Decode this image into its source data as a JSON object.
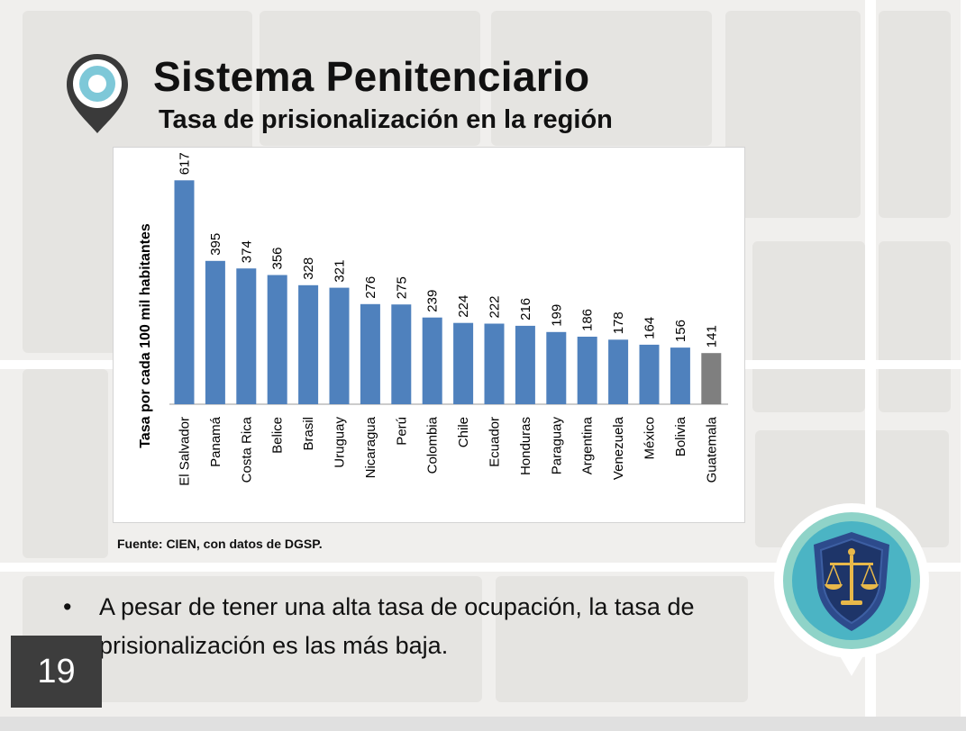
{
  "slide": {
    "title": "Sistema Penitenciario",
    "subtitle": "Tasa de prisionalización en la región",
    "source": "Fuente: CIEN, con datos de DGSP.",
    "bullet_symbol": "•",
    "bullet_text": "A pesar de tener una alta tasa de ocupación, la tasa de prisionalización es las más baja.",
    "page_number": "19",
    "colors": {
      "bar": "#4f81bd",
      "highlight_bar": "#7f7f7f",
      "pin_ring": "#7ec8d8",
      "shield": "#2d4b8c",
      "badge_gold": "#e8b84a"
    }
  },
  "chart_data": {
    "type": "bar",
    "title": "",
    "xlabel": "",
    "ylabel": "Tasa por cada 100 mil habitantes",
    "ylim": [
      0,
      650
    ],
    "grid": false,
    "categories": [
      "El Salvador",
      "Panamá",
      "Costa Rica",
      "Belice",
      "Brasil",
      "Uruguay",
      "Nicaragua",
      "Perú",
      "Colombia",
      "Chile",
      "Ecuador",
      "Honduras",
      "Paraguay",
      "Argentina",
      "Venezuela",
      "México",
      "Bolivia",
      "Guatemala"
    ],
    "values": [
      617,
      395,
      374,
      356,
      328,
      321,
      276,
      275,
      239,
      224,
      222,
      216,
      199,
      186,
      178,
      164,
      156,
      141
    ],
    "highlight": "Guatemala"
  }
}
